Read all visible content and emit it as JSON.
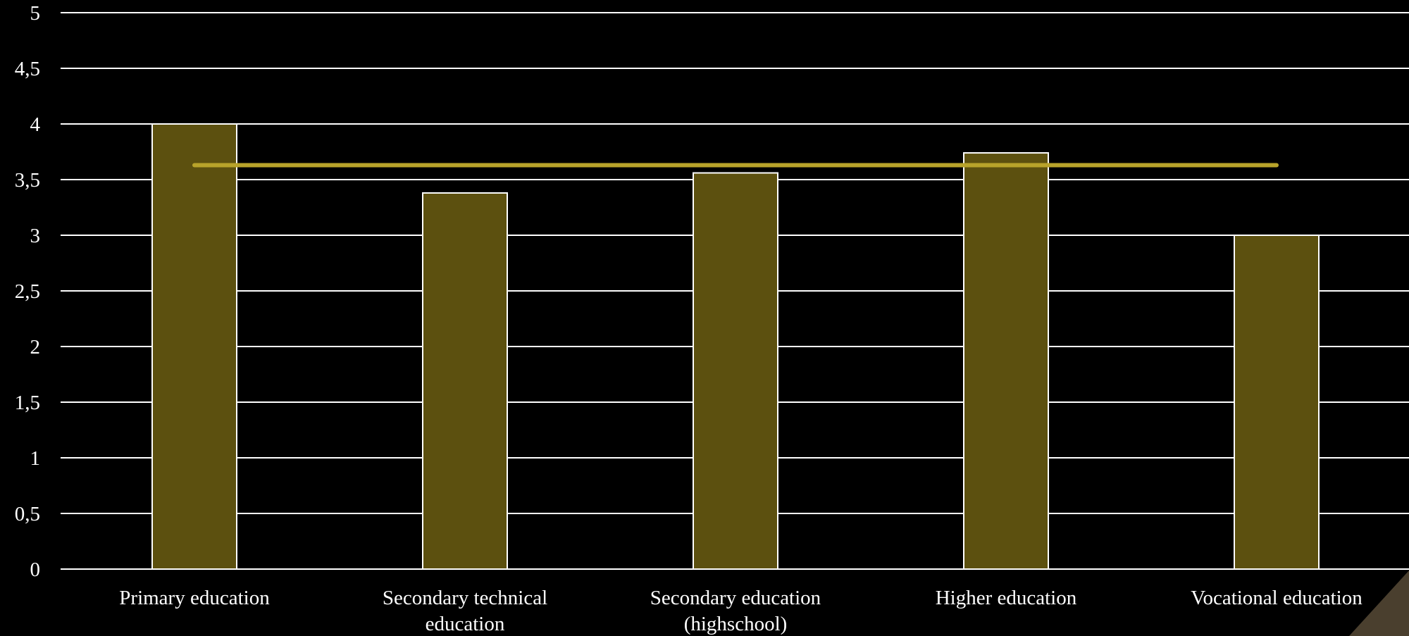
{
  "chart_data": {
    "type": "bar",
    "categories": [
      [
        "Primary education"
      ],
      [
        "Secondary technical",
        "education"
      ],
      [
        "Secondary education",
        "(highschool)"
      ],
      [
        "Higher education"
      ],
      [
        "Vocational education"
      ]
    ],
    "series": [
      {
        "type": "bar",
        "values": [
          4.0,
          3.38,
          3.56,
          3.74,
          3.0
        ],
        "color": "#5c500f"
      },
      {
        "type": "line",
        "values": [
          3.63,
          3.63,
          3.63,
          3.63,
          3.63
        ],
        "color": "#b8a32a"
      }
    ],
    "ylim": [
      0,
      5
    ],
    "yticks": [
      "0",
      "0,5",
      "1",
      "1,5",
      "2",
      "2,5",
      "3",
      "3,5",
      "4",
      "4,5",
      "5"
    ],
    "yticks_values": [
      0,
      0.5,
      1,
      1.5,
      2,
      2.5,
      3,
      3.5,
      4,
      4.5,
      5
    ],
    "grid": true,
    "legend": "none"
  },
  "colors": {
    "background": "#000000",
    "corner_accent": "#4a3f2e"
  }
}
